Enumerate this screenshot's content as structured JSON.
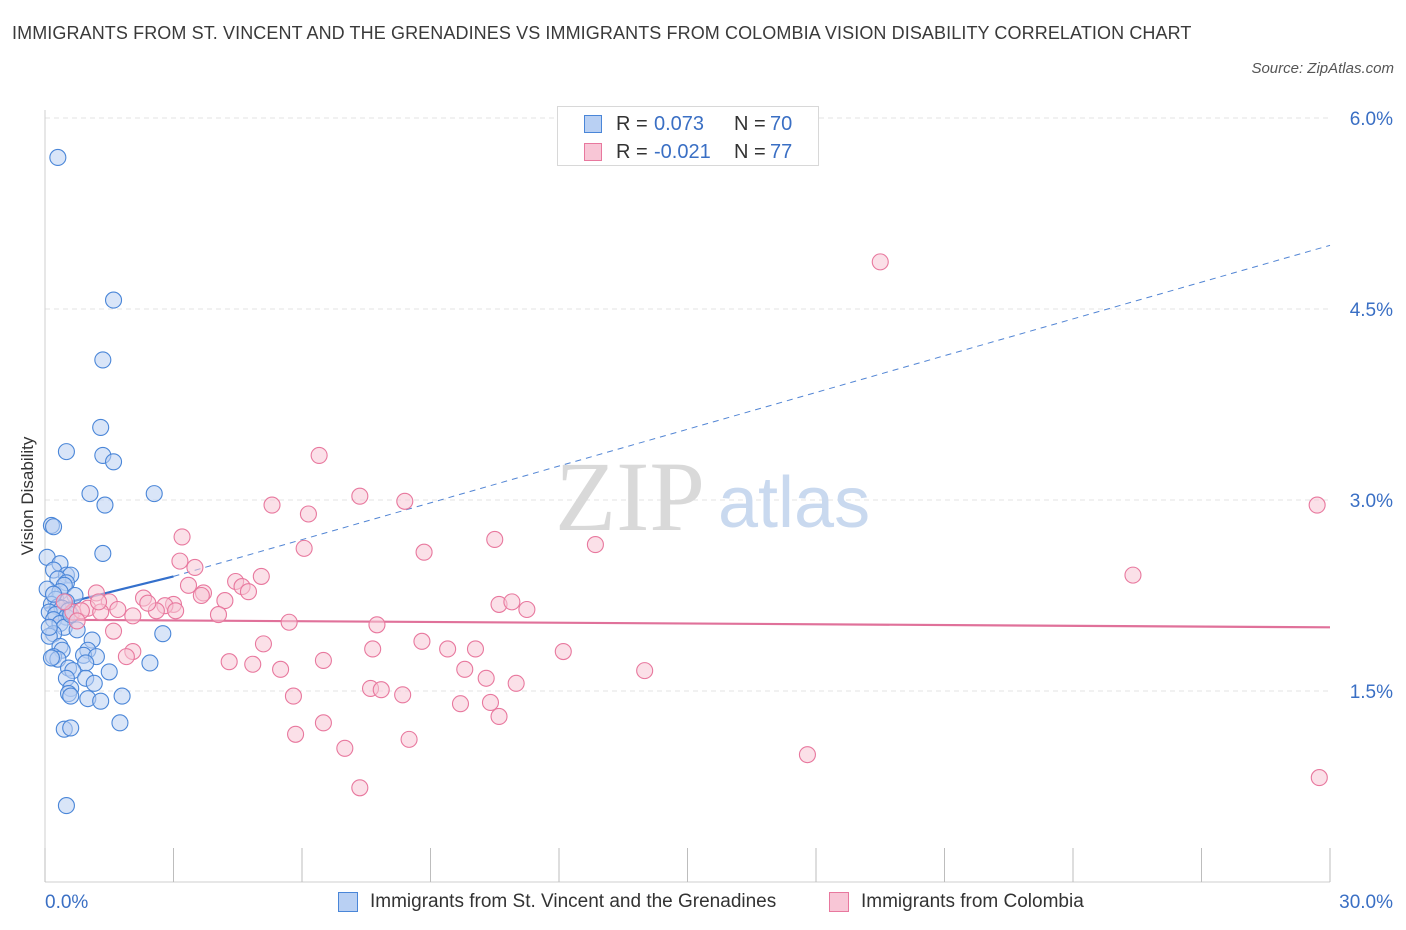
{
  "title": "IMMIGRANTS FROM ST. VINCENT AND THE GRENADINES VS IMMIGRANTS FROM COLOMBIA VISION DISABILITY CORRELATION CHART",
  "source": "Source: ZipAtlas.com",
  "watermark": {
    "zip": "ZIP",
    "atlas": "atlas"
  },
  "legend_top": [
    {
      "r_label": "R =",
      "r_value": "0.073",
      "n_label": "N =",
      "n_value": "70"
    },
    {
      "r_label": "R =",
      "r_value": "-0.021",
      "n_label": "N =",
      "n_value": "77"
    }
  ],
  "colors": {
    "blue_fill": "#b9d0f3",
    "blue_stroke": "#4a86d8",
    "blue_line": "#3470cc",
    "pink_fill": "#f8c6d6",
    "pink_stroke": "#e8789e",
    "pink_line": "#e0719a",
    "tick_text": "#3a6fc4",
    "grid": "#e3e3e3"
  },
  "chart_data": {
    "type": "scatter",
    "title": "IMMIGRANTS FROM ST. VINCENT AND THE GRENADINES VS IMMIGRANTS FROM COLOMBIA VISION DISABILITY CORRELATION CHART",
    "xlabel": "",
    "ylabel": "Vision Disability",
    "xlim": [
      0,
      30
    ],
    "ylim": [
      0,
      6.0
    ],
    "x_tick_labels": [
      "0.0%",
      "30.0%"
    ],
    "y_ticks": [
      1.5,
      3.0,
      4.5,
      6.0
    ],
    "y_tick_labels": [
      "1.5%",
      "3.0%",
      "4.5%",
      "6.0%"
    ],
    "grid": true,
    "legend_position": "bottom",
    "series": [
      {
        "name": "Immigrants from St. Vincent and the Grenadines",
        "R": 0.073,
        "N": 70,
        "trend": {
          "solid": [
            [
              0.0,
              2.15
            ],
            [
              3.0,
              2.4
            ]
          ],
          "dashed": [
            [
              3.0,
              2.4
            ],
            [
              30.0,
              5.0
            ]
          ]
        },
        "points": [
          [
            0.3,
            5.69
          ],
          [
            1.6,
            4.57
          ],
          [
            1.35,
            4.1
          ],
          [
            1.3,
            3.57
          ],
          [
            0.5,
            3.38
          ],
          [
            1.35,
            3.35
          ],
          [
            1.6,
            3.3
          ],
          [
            1.05,
            3.05
          ],
          [
            2.55,
            3.05
          ],
          [
            1.4,
            2.96
          ],
          [
            0.15,
            2.8
          ],
          [
            0.2,
            2.79
          ],
          [
            1.35,
            2.58
          ],
          [
            0.05,
            2.55
          ],
          [
            0.35,
            2.5
          ],
          [
            0.2,
            2.45
          ],
          [
            0.5,
            2.41
          ],
          [
            0.6,
            2.41
          ],
          [
            0.3,
            2.38
          ],
          [
            0.5,
            2.35
          ],
          [
            0.45,
            2.33
          ],
          [
            0.05,
            2.3
          ],
          [
            0.35,
            2.28
          ],
          [
            0.7,
            2.25
          ],
          [
            0.25,
            2.22
          ],
          [
            0.5,
            2.2
          ],
          [
            0.15,
            2.18
          ],
          [
            0.3,
            2.16
          ],
          [
            0.4,
            2.15
          ],
          [
            0.55,
            2.13
          ],
          [
            0.1,
            2.12
          ],
          [
            0.25,
            2.1
          ],
          [
            0.5,
            2.08
          ],
          [
            0.2,
            2.06
          ],
          [
            0.35,
            2.03
          ],
          [
            0.45,
            2.0
          ],
          [
            0.75,
            1.98
          ],
          [
            0.2,
            1.95
          ],
          [
            0.1,
            1.93
          ],
          [
            1.1,
            1.9
          ],
          [
            2.75,
            1.95
          ],
          [
            0.35,
            1.85
          ],
          [
            0.4,
            1.82
          ],
          [
            1.0,
            1.82
          ],
          [
            0.2,
            1.77
          ],
          [
            0.3,
            1.75
          ],
          [
            0.15,
            1.76
          ],
          [
            0.9,
            1.78
          ],
          [
            1.2,
            1.77
          ],
          [
            0.95,
            1.72
          ],
          [
            0.55,
            1.68
          ],
          [
            2.45,
            1.72
          ],
          [
            0.65,
            1.66
          ],
          [
            1.5,
            1.65
          ],
          [
            0.5,
            1.6
          ],
          [
            0.95,
            1.6
          ],
          [
            1.15,
            1.56
          ],
          [
            0.6,
            1.52
          ],
          [
            0.55,
            1.48
          ],
          [
            0.6,
            1.46
          ],
          [
            1.0,
            1.44
          ],
          [
            1.3,
            1.42
          ],
          [
            1.8,
            1.46
          ],
          [
            0.45,
            1.2
          ],
          [
            0.6,
            1.21
          ],
          [
            1.75,
            1.25
          ],
          [
            0.5,
            0.6
          ],
          [
            0.1,
            2.0
          ],
          [
            0.2,
            2.26
          ],
          [
            0.6,
            2.1
          ]
        ]
      },
      {
        "name": "Immigrants from Colombia",
        "R": -0.021,
        "N": 77,
        "trend": {
          "solid": [
            [
              0.0,
              2.06
            ],
            [
              30.0,
              2.0
            ]
          ]
        },
        "points": [
          [
            19.5,
            4.87
          ],
          [
            6.4,
            3.35
          ],
          [
            7.35,
            3.03
          ],
          [
            8.4,
            2.99
          ],
          [
            5.3,
            2.96
          ],
          [
            6.15,
            2.89
          ],
          [
            29.7,
            2.96
          ],
          [
            3.2,
            2.71
          ],
          [
            10.5,
            2.69
          ],
          [
            12.85,
            2.65
          ],
          [
            6.05,
            2.62
          ],
          [
            8.85,
            2.59
          ],
          [
            3.15,
            2.52
          ],
          [
            3.5,
            2.47
          ],
          [
            25.4,
            2.41
          ],
          [
            5.05,
            2.4
          ],
          [
            4.45,
            2.36
          ],
          [
            4.6,
            2.32
          ],
          [
            3.35,
            2.33
          ],
          [
            4.75,
            2.28
          ],
          [
            3.7,
            2.27
          ],
          [
            1.2,
            2.27
          ],
          [
            2.3,
            2.23
          ],
          [
            1.5,
            2.2
          ],
          [
            4.2,
            2.21
          ],
          [
            3.0,
            2.18
          ],
          [
            2.8,
            2.17
          ],
          [
            10.6,
            2.18
          ],
          [
            10.9,
            2.2
          ],
          [
            11.25,
            2.14
          ],
          [
            1.0,
            2.15
          ],
          [
            1.7,
            2.14
          ],
          [
            2.6,
            2.13
          ],
          [
            3.05,
            2.13
          ],
          [
            0.65,
            2.12
          ],
          [
            1.3,
            2.12
          ],
          [
            2.05,
            2.09
          ],
          [
            4.05,
            2.1
          ],
          [
            5.7,
            2.04
          ],
          [
            7.75,
            2.02
          ],
          [
            1.6,
            1.97
          ],
          [
            5.1,
            1.87
          ],
          [
            8.8,
            1.89
          ],
          [
            7.65,
            1.83
          ],
          [
            9.4,
            1.83
          ],
          [
            10.05,
            1.83
          ],
          [
            12.1,
            1.81
          ],
          [
            2.05,
            1.81
          ],
          [
            1.9,
            1.77
          ],
          [
            4.3,
            1.73
          ],
          [
            6.5,
            1.74
          ],
          [
            4.85,
            1.71
          ],
          [
            5.5,
            1.67
          ],
          [
            9.8,
            1.67
          ],
          [
            14.0,
            1.66
          ],
          [
            10.3,
            1.6
          ],
          [
            11.0,
            1.56
          ],
          [
            7.6,
            1.52
          ],
          [
            7.85,
            1.51
          ],
          [
            8.35,
            1.47
          ],
          [
            5.8,
            1.46
          ],
          [
            9.7,
            1.4
          ],
          [
            10.4,
            1.41
          ],
          [
            10.6,
            1.3
          ],
          [
            6.5,
            1.25
          ],
          [
            5.85,
            1.16
          ],
          [
            8.5,
            1.12
          ],
          [
            7.0,
            1.05
          ],
          [
            17.8,
            1.0
          ],
          [
            7.35,
            0.74
          ],
          [
            29.75,
            0.82
          ],
          [
            0.45,
            2.2
          ],
          [
            0.85,
            2.13
          ],
          [
            1.25,
            2.2
          ],
          [
            2.4,
            2.19
          ],
          [
            0.75,
            2.05
          ],
          [
            3.65,
            2.25
          ]
        ]
      }
    ]
  }
}
